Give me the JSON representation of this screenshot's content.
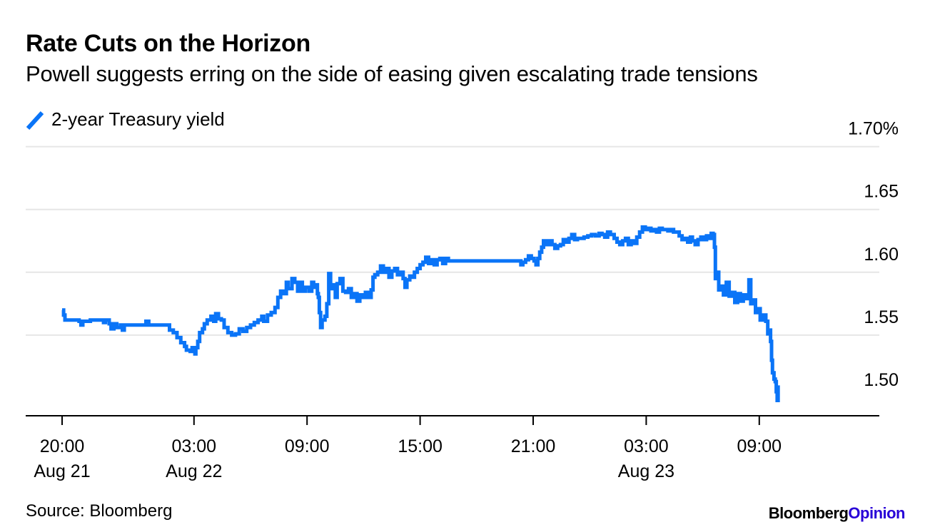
{
  "title": "Rate Cuts on the Horizon",
  "subtitle": "Powell suggests erring on the side of easing given escalating trade tensions",
  "source": "Source: Bloomberg",
  "brand": {
    "part1": "Bloomberg",
    "part2": "Opinion"
  },
  "colors": {
    "line": "#0a74f7",
    "grid": "#e6e6e6",
    "axis": "#000000",
    "brand_opinion": "#2800d7"
  },
  "chart_data": {
    "type": "line",
    "x_unit": "hours since 2019-08-21 20:00 (ET)",
    "ylim": [
      1.49,
      1.715
    ],
    "y_ticks": [
      1.5,
      1.55,
      1.6,
      1.65,
      1.7
    ],
    "y_tick_labels": [
      "1.50",
      "1.55",
      "1.60",
      "1.65",
      "1.70%"
    ],
    "x_ticks": [
      {
        "x": 0,
        "line1": "20:00",
        "line2": "Aug 21"
      },
      {
        "x": 7,
        "line1": "03:00",
        "line2": "Aug 22"
      },
      {
        "x": 13,
        "line1": "09:00",
        "line2": ""
      },
      {
        "x": 19,
        "line1": "15:00",
        "line2": ""
      },
      {
        "x": 25,
        "line1": "21:00",
        "line2": ""
      },
      {
        "x": 31,
        "line1": "03:00",
        "line2": "Aug 23"
      },
      {
        "x": 37,
        "line1": "09:00",
        "line2": ""
      }
    ],
    "grid": true,
    "legend_position": "top-left",
    "series": [
      {
        "name": "2-year Treasury yield",
        "points": [
          [
            0.0,
            1.57
          ],
          [
            0.08,
            1.566
          ],
          [
            0.15,
            1.562
          ],
          [
            0.5,
            1.562
          ],
          [
            0.9,
            1.561
          ],
          [
            1.0,
            1.558
          ],
          [
            1.1,
            1.561
          ],
          [
            1.5,
            1.562
          ],
          [
            1.9,
            1.562
          ],
          [
            2.2,
            1.56
          ],
          [
            2.3,
            1.562
          ],
          [
            2.5,
            1.559
          ],
          [
            2.6,
            1.555
          ],
          [
            2.75,
            1.559
          ],
          [
            2.9,
            1.556
          ],
          [
            3.1,
            1.558
          ],
          [
            3.2,
            1.554
          ],
          [
            3.3,
            1.558
          ],
          [
            3.8,
            1.558
          ],
          [
            4.3,
            1.558
          ],
          [
            4.45,
            1.561
          ],
          [
            4.6,
            1.558
          ],
          [
            5.5,
            1.558
          ],
          [
            5.7,
            1.554
          ],
          [
            5.9,
            1.552
          ],
          [
            6.1,
            1.548
          ],
          [
            6.3,
            1.544
          ],
          [
            6.5,
            1.541
          ],
          [
            6.6,
            1.538
          ],
          [
            6.8,
            1.537
          ],
          [
            6.9,
            1.54
          ],
          [
            7.05,
            1.535
          ],
          [
            7.1,
            1.54
          ],
          [
            7.2,
            1.545
          ],
          [
            7.3,
            1.552
          ],
          [
            7.45,
            1.555
          ],
          [
            7.55,
            1.559
          ],
          [
            7.7,
            1.562
          ],
          [
            7.9,
            1.565
          ],
          [
            8.05,
            1.561
          ],
          [
            8.15,
            1.567
          ],
          [
            8.3,
            1.563
          ],
          [
            8.45,
            1.562
          ],
          [
            8.6,
            1.556
          ],
          [
            8.8,
            1.552
          ],
          [
            9.0,
            1.55
          ],
          [
            9.2,
            1.551
          ],
          [
            9.4,
            1.555
          ],
          [
            9.6,
            1.553
          ],
          [
            9.8,
            1.556
          ],
          [
            10.0,
            1.558
          ],
          [
            10.2,
            1.56
          ],
          [
            10.4,
            1.562
          ],
          [
            10.6,
            1.565
          ],
          [
            10.7,
            1.561
          ],
          [
            10.9,
            1.566
          ],
          [
            11.1,
            1.568
          ],
          [
            11.3,
            1.572
          ],
          [
            11.45,
            1.58
          ],
          [
            11.6,
            1.585
          ],
          [
            11.75,
            1.583
          ],
          [
            11.9,
            1.592
          ],
          [
            12.0,
            1.587
          ],
          [
            12.2,
            1.595
          ],
          [
            12.35,
            1.592
          ],
          [
            12.5,
            1.585
          ],
          [
            12.6,
            1.592
          ],
          [
            12.75,
            1.585
          ],
          [
            12.9,
            1.588
          ],
          [
            13.1,
            1.585
          ],
          [
            13.25,
            1.592
          ],
          [
            13.35,
            1.588
          ],
          [
            13.5,
            1.59
          ],
          [
            13.55,
            1.583
          ],
          [
            13.6,
            1.58
          ],
          [
            13.65,
            1.568
          ],
          [
            13.72,
            1.556
          ],
          [
            13.8,
            1.562
          ],
          [
            13.95,
            1.565
          ],
          [
            14.05,
            1.575
          ],
          [
            14.15,
            1.599
          ],
          [
            14.25,
            1.587
          ],
          [
            14.4,
            1.59
          ],
          [
            14.5,
            1.58
          ],
          [
            14.6,
            1.591
          ],
          [
            14.75,
            1.595
          ],
          [
            14.9,
            1.585
          ],
          [
            15.05,
            1.584
          ],
          [
            15.2,
            1.587
          ],
          [
            15.35,
            1.58
          ],
          [
            15.5,
            1.583
          ],
          [
            15.65,
            1.577
          ],
          [
            15.8,
            1.582
          ],
          [
            15.95,
            1.58
          ],
          [
            16.1,
            1.584
          ],
          [
            16.25,
            1.58
          ],
          [
            16.4,
            1.586
          ],
          [
            16.5,
            1.596
          ],
          [
            16.6,
            1.598
          ],
          [
            16.75,
            1.6
          ],
          [
            16.9,
            1.605
          ],
          [
            17.05,
            1.6
          ],
          [
            17.2,
            1.603
          ],
          [
            17.35,
            1.596
          ],
          [
            17.5,
            1.601
          ],
          [
            17.65,
            1.603
          ],
          [
            17.8,
            1.598
          ],
          [
            17.95,
            1.6
          ],
          [
            18.1,
            1.595
          ],
          [
            18.2,
            1.588
          ],
          [
            18.3,
            1.594
          ],
          [
            18.45,
            1.597
          ],
          [
            18.55,
            1.596
          ],
          [
            18.7,
            1.6
          ],
          [
            18.85,
            1.603
          ],
          [
            19.0,
            1.606
          ],
          [
            19.15,
            1.608
          ],
          [
            19.3,
            1.612
          ],
          [
            19.45,
            1.607
          ],
          [
            19.6,
            1.61
          ],
          [
            19.75,
            1.606
          ],
          [
            19.9,
            1.61
          ],
          [
            20.05,
            1.611
          ],
          [
            20.2,
            1.607
          ],
          [
            20.35,
            1.611
          ],
          [
            20.5,
            1.609
          ],
          [
            21.0,
            1.609
          ],
          [
            21.5,
            1.609
          ],
          [
            22.0,
            1.609
          ],
          [
            22.5,
            1.609
          ],
          [
            23.0,
            1.609
          ],
          [
            23.5,
            1.609
          ],
          [
            24.0,
            1.609
          ],
          [
            24.3,
            1.609
          ],
          [
            24.35,
            1.606
          ],
          [
            24.45,
            1.608
          ],
          [
            24.6,
            1.61
          ],
          [
            24.75,
            1.613
          ],
          [
            24.9,
            1.611
          ],
          [
            25.05,
            1.609
          ],
          [
            25.15,
            1.606
          ],
          [
            25.25,
            1.611
          ],
          [
            25.35,
            1.616
          ],
          [
            25.45,
            1.62
          ],
          [
            25.55,
            1.625
          ],
          [
            25.7,
            1.622
          ],
          [
            25.85,
            1.625
          ],
          [
            26.0,
            1.622
          ],
          [
            26.15,
            1.619
          ],
          [
            26.3,
            1.621
          ],
          [
            26.45,
            1.622
          ],
          [
            26.6,
            1.626
          ],
          [
            26.75,
            1.624
          ],
          [
            26.9,
            1.627
          ],
          [
            27.05,
            1.63
          ],
          [
            27.2,
            1.626
          ],
          [
            27.35,
            1.627
          ],
          [
            27.5,
            1.627
          ],
          [
            27.7,
            1.628
          ],
          [
            27.9,
            1.629
          ],
          [
            28.1,
            1.63
          ],
          [
            28.3,
            1.629
          ],
          [
            28.5,
            1.631
          ],
          [
            28.65,
            1.63
          ],
          [
            28.8,
            1.628
          ],
          [
            28.95,
            1.632
          ],
          [
            29.1,
            1.63
          ],
          [
            29.3,
            1.627
          ],
          [
            29.45,
            1.624
          ],
          [
            29.6,
            1.622
          ],
          [
            29.75,
            1.625
          ],
          [
            29.9,
            1.627
          ],
          [
            30.05,
            1.622
          ],
          [
            30.2,
            1.625
          ],
          [
            30.35,
            1.623
          ],
          [
            30.5,
            1.628
          ],
          [
            30.65,
            1.632
          ],
          [
            30.8,
            1.636
          ],
          [
            30.95,
            1.634
          ],
          [
            31.1,
            1.635
          ],
          [
            31.25,
            1.633
          ],
          [
            31.4,
            1.634
          ],
          [
            31.55,
            1.632
          ],
          [
            31.7,
            1.635
          ],
          [
            31.85,
            1.634
          ],
          [
            32.0,
            1.634
          ],
          [
            32.15,
            1.633
          ],
          [
            32.3,
            1.634
          ],
          [
            32.45,
            1.632
          ],
          [
            32.6,
            1.632
          ],
          [
            32.75,
            1.629
          ],
          [
            32.9,
            1.626
          ],
          [
            33.05,
            1.627
          ],
          [
            33.2,
            1.624
          ],
          [
            33.35,
            1.628
          ],
          [
            33.45,
            1.625
          ],
          [
            33.6,
            1.622
          ],
          [
            33.75,
            1.626
          ],
          [
            33.9,
            1.628
          ],
          [
            34.05,
            1.626
          ],
          [
            34.2,
            1.629
          ],
          [
            34.35,
            1.627
          ],
          [
            34.45,
            1.631
          ],
          [
            34.55,
            1.63
          ],
          [
            34.62,
            1.62
          ],
          [
            34.67,
            1.595
          ],
          [
            34.75,
            1.6
          ],
          [
            34.85,
            1.586
          ],
          [
            35.0,
            1.589
          ],
          [
            35.1,
            1.582
          ],
          [
            35.25,
            1.592
          ],
          [
            35.4,
            1.581
          ],
          [
            35.55,
            1.584
          ],
          [
            35.7,
            1.576
          ],
          [
            35.85,
            1.583
          ],
          [
            36.0,
            1.577
          ],
          [
            36.15,
            1.582
          ],
          [
            36.3,
            1.579
          ],
          [
            36.45,
            1.594
          ],
          [
            36.55,
            1.575
          ],
          [
            36.7,
            1.578
          ],
          [
            36.8,
            1.568
          ],
          [
            36.95,
            1.571
          ],
          [
            37.05,
            1.562
          ],
          [
            37.2,
            1.566
          ],
          [
            37.35,
            1.561
          ],
          [
            37.45,
            1.551
          ],
          [
            37.55,
            1.554
          ],
          [
            37.6,
            1.545
          ],
          [
            37.65,
            1.53
          ],
          [
            37.7,
            1.52
          ],
          [
            37.78,
            1.515
          ],
          [
            37.85,
            1.513
          ],
          [
            37.9,
            1.505
          ],
          [
            37.95,
            1.498
          ],
          [
            38.0,
            1.51
          ]
        ]
      }
    ]
  }
}
